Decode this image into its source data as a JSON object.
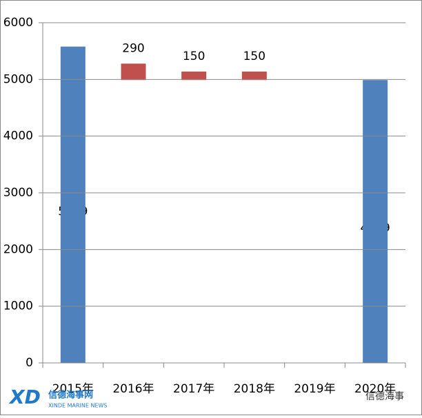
{
  "chart_data": {
    "type": "waterfall",
    "categories": [
      "2015年",
      "2016年",
      "2017年",
      "2018年",
      "2019年",
      "2020年"
    ],
    "values": [
      5579,
      290,
      150,
      150,
      null,
      4989
    ],
    "kinds": [
      "total",
      "increment",
      "increment",
      "increment",
      "increment",
      "total"
    ],
    "colors": {
      "total": "#4f81bd",
      "increment": "#c0504d"
    },
    "ylim": [
      0,
      6000
    ],
    "yticks": [
      0,
      1000,
      2000,
      3000,
      4000,
      5000,
      6000
    ],
    "grid": true,
    "watermarks": {
      "logo": "XD",
      "logo_name": "信德海事网",
      "logo_sub": "XINDE MARINE NEWS",
      "corner": "信德海事"
    }
  }
}
